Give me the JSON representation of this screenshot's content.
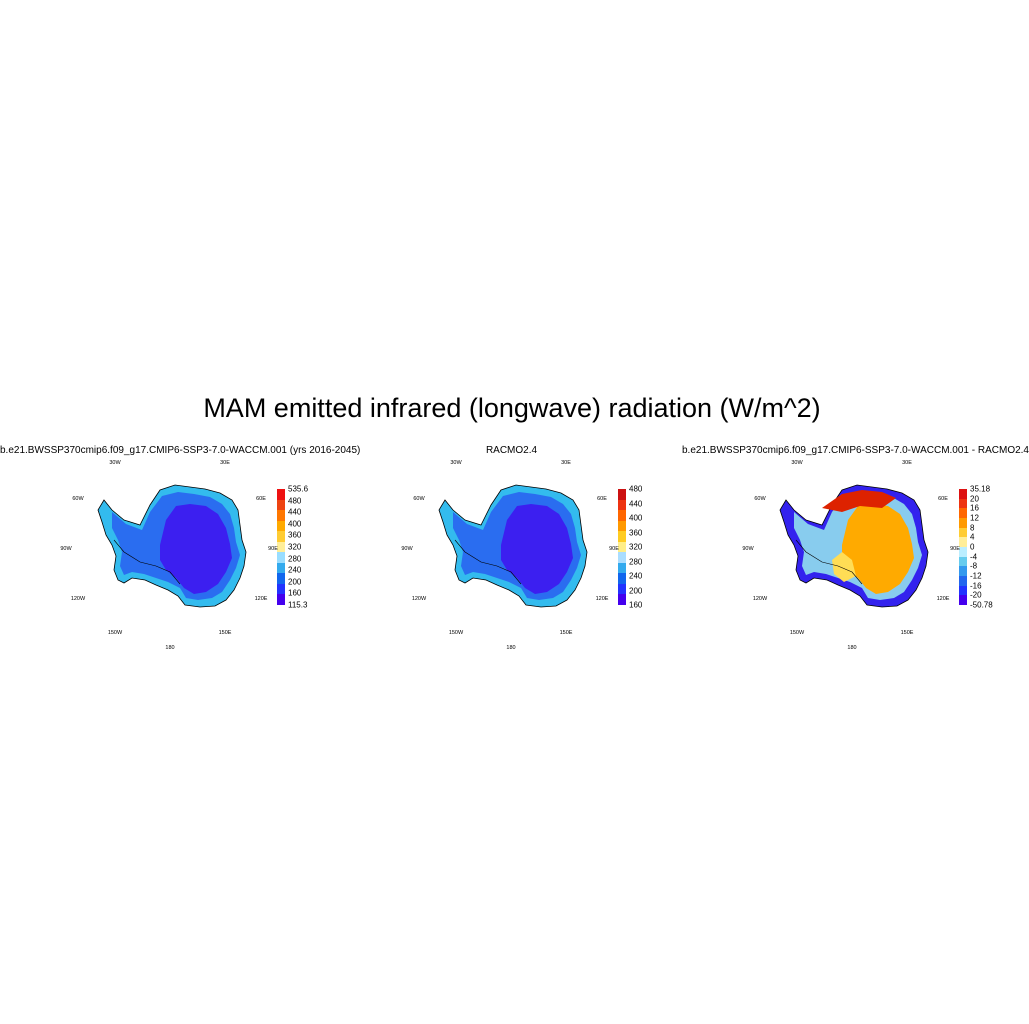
{
  "figure": {
    "title": "MAM emitted infrared (longwave) radiation (W/m^2)"
  },
  "lon_labels": {
    "top_left": "30W",
    "top_right": "30E",
    "left_upper": "60W",
    "right_upper": "60E",
    "left_mid": "90W",
    "right_mid": "90E",
    "left_lower": "120W",
    "right_lower": "120E",
    "bottom_left": "150W",
    "bottom_right": "150E",
    "bottom": "180"
  },
  "panels": [
    {
      "title": "b.e21.BWSSP370cmip6.f09_g17.CMIP6-SSP3-7.0-WACCM.001 (yrs 2016-2045)",
      "colors": {
        "coast": "#33bbee",
        "shelf": "#2a6df0",
        "interior": "#3c1ff0"
      },
      "colorbar": {
        "colors": [
          "#ee1111",
          "#ee4411",
          "#ff7700",
          "#ffaa00",
          "#ffcc33",
          "#ffee99",
          "#99ddff",
          "#33aaee",
          "#1166ee",
          "#2233ff",
          "#4400ee"
        ],
        "labels": [
          "535.6",
          "480",
          "440",
          "400",
          "360",
          "320",
          "280",
          "240",
          "200",
          "160",
          "115.3"
        ]
      }
    },
    {
      "title": "RACMO2.4",
      "colors": {
        "coast": "#33bbee",
        "shelf": "#2a6df0",
        "interior": "#3c1ff0"
      },
      "colorbar": {
        "colors": [
          "#cc1111",
          "#ee3311",
          "#ff6600",
          "#ff9900",
          "#ffcc22",
          "#ffee88",
          "#aaddff",
          "#33aaee",
          "#1166ee",
          "#2233ff",
          "#4400ee"
        ],
        "labels": [
          "480",
          "440",
          "400",
          "360",
          "320",
          "280",
          "240",
          "200",
          "160"
        ]
      }
    },
    {
      "title": "b.e21.BWSSP370cmip6.f09_g17.CMIP6-SSP3-7.0-WACCM.001 - RACMO2.4",
      "colors": {
        "coast": "#3322ee",
        "shelf": "#88ccee",
        "interior": "#ffaa00",
        "accent": "#dd2200",
        "light": "#ffdd55"
      },
      "colorbar": {
        "colors": [
          "#dd1111",
          "#ee3311",
          "#ff6600",
          "#ff9900",
          "#ffcc33",
          "#ffee99",
          "#bbeeff",
          "#66ccee",
          "#3399ee",
          "#2266ee",
          "#2233ff",
          "#4400ee"
        ],
        "labels": [
          "35.18",
          "20",
          "16",
          "12",
          "8",
          "4",
          "0",
          "-4",
          "-8",
          "-12",
          "-16",
          "-20",
          "-50.78"
        ]
      }
    }
  ]
}
